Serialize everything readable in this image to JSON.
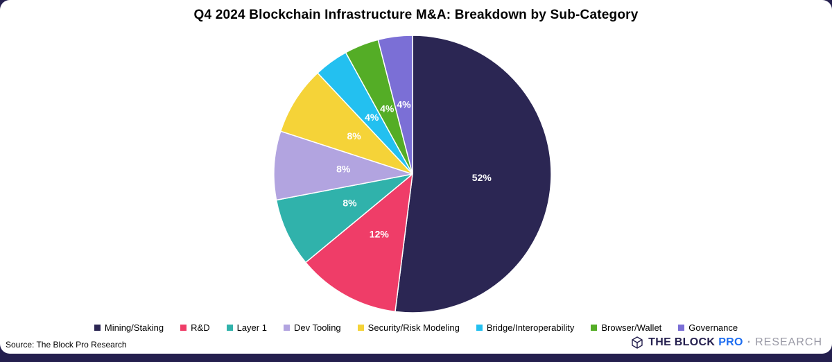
{
  "chart_data": {
    "type": "pie",
    "title": "Q4 2024 Blockchain Infrastructure M&A: Breakdown by Sub-Category",
    "start_angle_deg": 0,
    "direction": "clockwise",
    "legend_position": "bottom",
    "data_label_color": "#ffffff",
    "slices": [
      {
        "label": "Mining/Staking",
        "value": 52,
        "data_label": "52%",
        "color": "#2b2653"
      },
      {
        "label": "R&D",
        "value": 12,
        "data_label": "12%",
        "color": "#ef3d68"
      },
      {
        "label": "Layer 1",
        "value": 8,
        "data_label": "8%",
        "color": "#30b2ab"
      },
      {
        "label": "Dev Tooling",
        "value": 8,
        "data_label": "8%",
        "color": "#b2a4e0"
      },
      {
        "label": "Security/Risk Modeling",
        "value": 8,
        "data_label": "8%",
        "color": "#f5d338"
      },
      {
        "label": "Bridge/Interoperability",
        "value": 4,
        "data_label": "4%",
        "color": "#23c0f0"
      },
      {
        "label": "Browser/Wallet",
        "value": 4,
        "data_label": "4%",
        "color": "#54ad26"
      },
      {
        "label": "Governance",
        "value": 4,
        "data_label": "4%",
        "color": "#7b6fd6"
      }
    ]
  },
  "footer": {
    "source": "Source: The Block Pro Research",
    "logo": {
      "the_block": "THE BLOCK",
      "pro": "PRO",
      "separator": "·",
      "research": "RESEARCH"
    }
  },
  "colors": {
    "background": "#ffffff",
    "bottom_bar": "#241f4e",
    "brand_navy": "#241f4e",
    "brand_blue": "#1f6ef0",
    "brand_gray": "#9a9aa6"
  }
}
